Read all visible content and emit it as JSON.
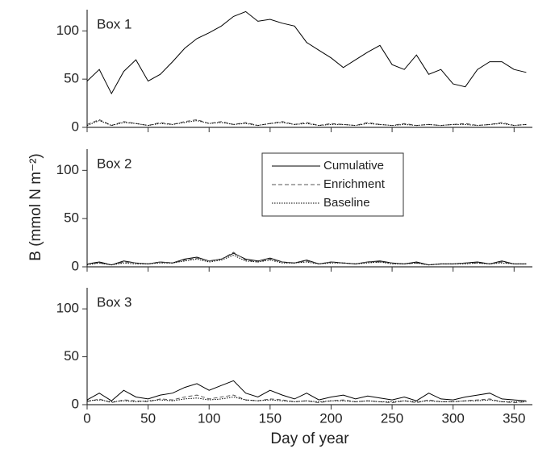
{
  "chart_data": [
    {
      "type": "line",
      "title": "Box 1",
      "x": [
        0,
        10,
        20,
        30,
        40,
        50,
        60,
        70,
        80,
        90,
        100,
        110,
        120,
        130,
        140,
        150,
        160,
        170,
        180,
        190,
        200,
        210,
        220,
        230,
        240,
        250,
        260,
        270,
        280,
        290,
        300,
        310,
        320,
        330,
        340,
        350,
        360
      ],
      "series": [
        {
          "color": "#000000",
          "line_style": "solid",
          "values": [
            48,
            60,
            35,
            58,
            70,
            48,
            55,
            68,
            82,
            92,
            98,
            105,
            115,
            120,
            110,
            112,
            108,
            105,
            88,
            80,
            72,
            62,
            70,
            78,
            85,
            65,
            60,
            75,
            55,
            60,
            45,
            42,
            60,
            68,
            68,
            60,
            57
          ]
        },
        {
          "color": "#555555",
          "line_style": "dashed",
          "values": [
            3,
            8,
            2,
            6,
            4,
            2,
            5,
            3,
            6,
            8,
            4,
            6,
            3,
            5,
            2,
            4,
            6,
            3,
            5,
            2,
            4,
            3,
            2,
            5,
            3,
            2,
            4,
            2,
            3,
            2,
            3,
            4,
            2,
            3,
            5,
            2,
            3
          ]
        },
        {
          "color": "#000000",
          "line_style": "dotted",
          "values": [
            2,
            7,
            2,
            5,
            4,
            2,
            4,
            3,
            5,
            7,
            4,
            5,
            3,
            4,
            2,
            4,
            5,
            3,
            4,
            2,
            3,
            3,
            2,
            4,
            3,
            2,
            3,
            2,
            3,
            2,
            3,
            3,
            2,
            3,
            4,
            2,
            3
          ]
        }
      ],
      "xlim": [
        0,
        365
      ],
      "xticks": [
        0,
        50,
        100,
        150,
        200,
        250,
        300,
        350
      ],
      "ylim": [
        0,
        122
      ],
      "yticks": [
        0,
        50,
        100
      ]
    },
    {
      "type": "line",
      "title": "Box 2",
      "x": [
        0,
        10,
        20,
        30,
        40,
        50,
        60,
        70,
        80,
        90,
        100,
        110,
        120,
        130,
        140,
        150,
        160,
        170,
        180,
        190,
        200,
        210,
        220,
        230,
        240,
        250,
        260,
        270,
        280,
        290,
        300,
        310,
        320,
        330,
        340,
        350,
        360
      ],
      "series": [
        {
          "name": "Cumulative",
          "color": "#000000",
          "line_style": "solid",
          "values": [
            3,
            5,
            2,
            6,
            4,
            3,
            5,
            4,
            8,
            10,
            6,
            8,
            14,
            8,
            6,
            9,
            5,
            4,
            7,
            3,
            5,
            4,
            3,
            5,
            6,
            4,
            3,
            5,
            2,
            3,
            3,
            4,
            5,
            3,
            6,
            3,
            3
          ]
        },
        {
          "name": "Enrichment",
          "color": "#555555",
          "line_style": "dashed",
          "values": [
            3,
            4,
            2,
            5,
            4,
            3,
            5,
            4,
            7,
            9,
            6,
            8,
            15,
            7,
            5,
            8,
            5,
            4,
            6,
            3,
            5,
            4,
            3,
            5,
            5,
            4,
            3,
            4,
            2,
            3,
            3,
            4,
            4,
            3,
            5,
            3,
            3
          ]
        },
        {
          "name": "Baseline",
          "color": "#000000",
          "line_style": "dotted",
          "values": [
            2,
            4,
            2,
            4,
            3,
            3,
            4,
            4,
            6,
            8,
            5,
            7,
            12,
            6,
            5,
            7,
            4,
            4,
            5,
            3,
            4,
            4,
            3,
            4,
            5,
            3,
            3,
            4,
            2,
            3,
            3,
            3,
            4,
            3,
            4,
            3,
            3
          ]
        }
      ],
      "legend": "upper center",
      "y_label": "B (mmol N m⁻²)",
      "xlim": [
        0,
        365
      ],
      "xticks": [
        0,
        50,
        100,
        150,
        200,
        250,
        300,
        350
      ],
      "ylim": [
        0,
        122
      ],
      "yticks": [
        0,
        50,
        100
      ]
    },
    {
      "type": "line",
      "title": "Box 3",
      "x": [
        0,
        10,
        20,
        30,
        40,
        50,
        60,
        70,
        80,
        90,
        100,
        110,
        120,
        130,
        140,
        150,
        160,
        170,
        180,
        190,
        200,
        210,
        220,
        230,
        240,
        250,
        260,
        270,
        280,
        290,
        300,
        310,
        320,
        330,
        340,
        350,
        360
      ],
      "series": [
        {
          "color": "#000000",
          "line_style": "solid",
          "values": [
            5,
            12,
            4,
            15,
            8,
            6,
            10,
            12,
            18,
            22,
            15,
            20,
            25,
            12,
            8,
            15,
            10,
            6,
            12,
            5,
            8,
            10,
            6,
            9,
            7,
            5,
            8,
            4,
            12,
            6,
            5,
            8,
            10,
            12,
            6,
            5,
            4
          ]
        },
        {
          "color": "#555555",
          "line_style": "dashed",
          "values": [
            3,
            6,
            2,
            5,
            4,
            3,
            6,
            5,
            8,
            10,
            6,
            8,
            10,
            5,
            4,
            6,
            5,
            3,
            4,
            2,
            4,
            5,
            3,
            4,
            3,
            2,
            4,
            2,
            5,
            3,
            3,
            4,
            5,
            6,
            3,
            2,
            3
          ]
        },
        {
          "color": "#000000",
          "line_style": "dotted",
          "values": [
            4,
            5,
            3,
            4,
            3,
            4,
            5,
            4,
            6,
            7,
            5,
            6,
            8,
            5,
            4,
            5,
            4,
            3,
            4,
            3,
            4,
            4,
            3,
            4,
            3,
            3,
            4,
            3,
            4,
            3,
            3,
            4,
            4,
            5,
            3,
            3,
            3
          ]
        }
      ],
      "x_label": "Day of year",
      "xlim": [
        0,
        365
      ],
      "xticks": [
        0,
        50,
        100,
        150,
        200,
        250,
        300,
        350
      ],
      "ylim": [
        0,
        122
      ],
      "yticks": [
        0,
        50,
        100
      ]
    }
  ]
}
